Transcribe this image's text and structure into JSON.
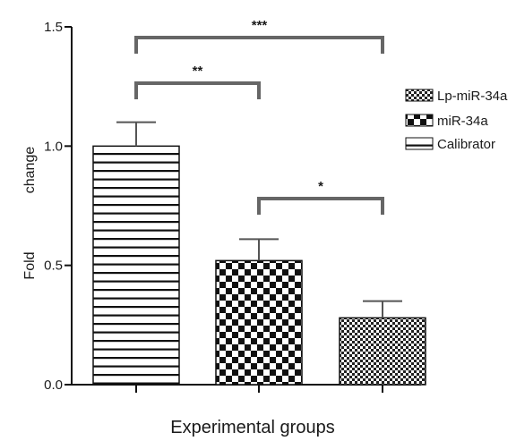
{
  "chart_data": {
    "type": "bar",
    "categories": [
      "Calibrator",
      "miR-34a",
      "Lp-miR-34a"
    ],
    "values": [
      1.0,
      0.52,
      0.28
    ],
    "errors": [
      0.1,
      0.09,
      0.07
    ],
    "patterns": [
      "horizontal-lines",
      "checkerboard",
      "fine-checker"
    ],
    "xlabel": "Experimental groups",
    "ylabel_words": [
      "Fold",
      "change"
    ],
    "ylim": [
      0,
      1.5
    ],
    "yticks": [
      "0.0",
      "0.5",
      "1.0",
      "1.5"
    ],
    "legend": [
      "Lp-miR-34a",
      "miR-34a",
      "Calibrator"
    ],
    "legend_placement": "right",
    "grid": false,
    "significance": [
      {
        "from": 0,
        "to": 1,
        "label": "**"
      },
      {
        "from": 1,
        "to": 2,
        "label": "*"
      },
      {
        "from": 0,
        "to": 2,
        "label": "***"
      }
    ]
  }
}
